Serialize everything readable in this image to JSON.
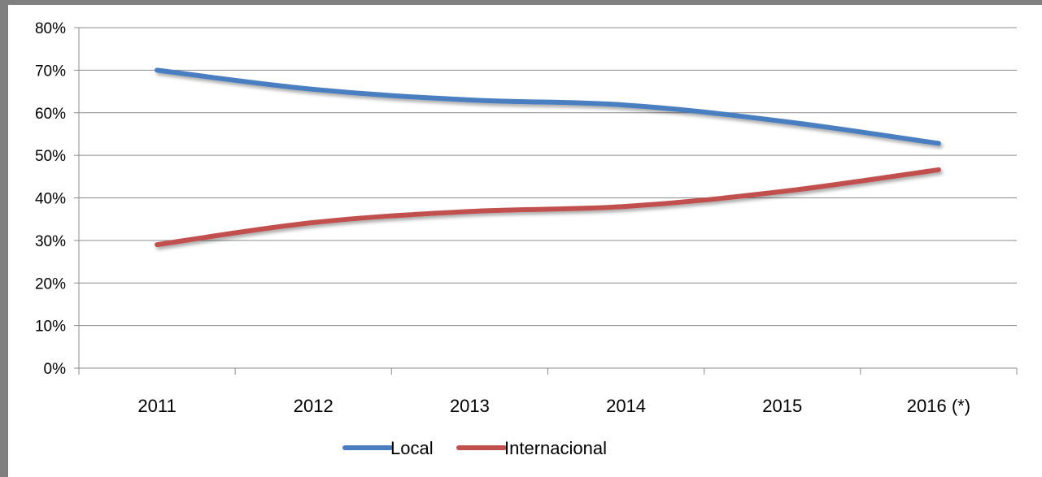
{
  "chart_data": {
    "type": "line",
    "categories": [
      "2011",
      "2012",
      "2013",
      "2014",
      "2015",
      "2016 (*)"
    ],
    "y_tick_labels": [
      "0%",
      "10%",
      "20%",
      "30%",
      "40%",
      "50%",
      "60%",
      "70%",
      "80%"
    ],
    "ylim": [
      0,
      80
    ],
    "grid": true,
    "legend_position": "bottom",
    "series": [
      {
        "name": "Local",
        "values": [
          70,
          65.5,
          63,
          61.8,
          58,
          52.8
        ],
        "color": "#4a7ec0"
      },
      {
        "name": "Internacional",
        "values": [
          29,
          34.2,
          36.8,
          38,
          41.5,
          46.6
        ],
        "color": "#c0504d"
      }
    ]
  },
  "colors": {
    "gridline": "#8c8c8c",
    "axis": "#8c8c8c",
    "frame": "#7f7f7f"
  }
}
